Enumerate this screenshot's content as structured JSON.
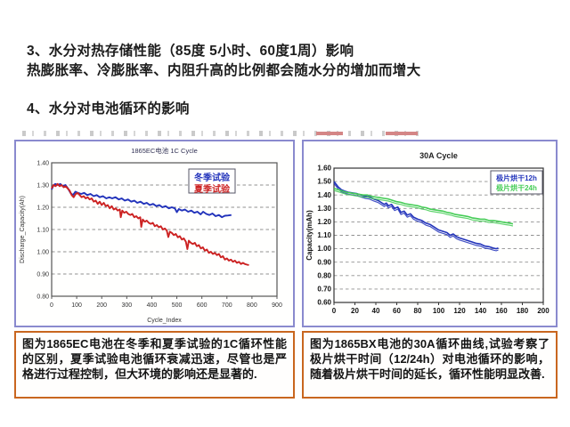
{
  "slide": {
    "heading_3": "3、水分对热存储性能（85度 5小时、60度1周）影响",
    "heading_3_sub": "热膨胀率、冷膨胀率、内阻升高的比例都会随水分的增加而增大",
    "heading_4": "4、水分对电池循环的影响"
  },
  "captions": {
    "left": "图为1865EC电池在冬季和夏季试验的1C循环性能的区别，夏季试验电池循环衰减迅速，尽管也是严格进行过程控制，但大环境的影响还是显著的.",
    "right": "图为1865BX电池的30A循环曲线,试验考察了极片烘干时间（12/24h）对电池循环的影响，随着极片烘干时间的延长，循环性能明显改善."
  },
  "colors": {
    "panel_border": "#8a8ace",
    "caption_border": "#c9661f",
    "winter_blue": "#2233bb",
    "summer_red": "#cc2222",
    "dry12_blue": "#2233bb",
    "dry24_green": "#44cc55",
    "grid_gray": "#909090"
  },
  "chart_data": [
    {
      "type": "line",
      "title": "1865EC电池 1C Cycle",
      "xlabel": "Cycle_Index",
      "ylabel": "Discharge_Capacity(Ah)",
      "xlim": [
        0,
        900
      ],
      "ylim": [
        0.8,
        1.4
      ],
      "xticks": [
        0,
        100,
        200,
        300,
        400,
        500,
        600,
        700,
        800,
        900
      ],
      "yticks": [
        0.8,
        0.9,
        1.0,
        1.1,
        1.2,
        1.3,
        1.4
      ],
      "grid": "horizontal-dashed",
      "legend_position": "top-right-inside",
      "series": [
        {
          "name": "冬季试验",
          "color": "#2233bb",
          "points": [
            [
              0,
              1.28
            ],
            [
              8,
              1.3
            ],
            [
              15,
              1.305
            ],
            [
              25,
              1.3
            ],
            [
              35,
              1.305
            ],
            [
              45,
              1.295
            ],
            [
              55,
              1.3
            ],
            [
              65,
              1.285
            ],
            [
              75,
              1.265
            ],
            [
              85,
              1.255
            ],
            [
              95,
              1.27
            ],
            [
              105,
              1.265
            ],
            [
              118,
              1.26
            ],
            [
              130,
              1.265
            ],
            [
              142,
              1.255
            ],
            [
              155,
              1.26
            ],
            [
              168,
              1.25
            ],
            [
              180,
              1.255
            ],
            [
              192,
              1.245
            ],
            [
              205,
              1.25
            ],
            [
              218,
              1.24
            ],
            [
              230,
              1.245
            ],
            [
              242,
              1.24
            ],
            [
              255,
              1.245
            ],
            [
              268,
              1.235
            ],
            [
              280,
              1.24
            ],
            [
              292,
              1.23
            ],
            [
              305,
              1.235
            ],
            [
              318,
              1.225
            ],
            [
              330,
              1.23
            ],
            [
              342,
              1.22
            ],
            [
              355,
              1.225
            ],
            [
              368,
              1.215
            ],
            [
              380,
              1.22
            ],
            [
              392,
              1.21
            ],
            [
              405,
              1.215
            ],
            [
              418,
              1.205
            ],
            [
              430,
              1.21
            ],
            [
              442,
              1.2
            ],
            [
              455,
              1.205
            ],
            [
              468,
              1.195
            ],
            [
              480,
              1.2
            ],
            [
              492,
              1.195
            ],
            [
              500,
              1.178
            ],
            [
              508,
              1.192
            ],
            [
              520,
              1.185
            ],
            [
              532,
              1.19
            ],
            [
              545,
              1.18
            ],
            [
              558,
              1.185
            ],
            [
              570,
              1.175
            ],
            [
              582,
              1.18
            ],
            [
              595,
              1.168
            ],
            [
              605,
              1.18
            ],
            [
              618,
              1.17
            ],
            [
              630,
              1.165
            ],
            [
              642,
              1.172
            ],
            [
              655,
              1.16
            ],
            [
              668,
              1.165
            ],
            [
              680,
              1.155
            ],
            [
              692,
              1.162
            ],
            [
              705,
              1.163
            ],
            [
              718,
              1.165
            ]
          ]
        },
        {
          "name": "夏季试验",
          "color": "#cc2222",
          "points": [
            [
              0,
              1.285
            ],
            [
              8,
              1.3
            ],
            [
              16,
              1.295
            ],
            [
              24,
              1.305
            ],
            [
              32,
              1.295
            ],
            [
              40,
              1.3
            ],
            [
              48,
              1.29
            ],
            [
              56,
              1.295
            ],
            [
              64,
              1.285
            ],
            [
              72,
              1.275
            ],
            [
              80,
              1.255
            ],
            [
              88,
              1.245
            ],
            [
              96,
              1.26
            ],
            [
              104,
              1.265
            ],
            [
              112,
              1.255
            ],
            [
              120,
              1.245
            ],
            [
              128,
              1.25
            ],
            [
              136,
              1.24
            ],
            [
              144,
              1.245
            ],
            [
              152,
              1.235
            ],
            [
              160,
              1.24
            ],
            [
              168,
              1.225
            ],
            [
              176,
              1.23
            ],
            [
              184,
              1.215
            ],
            [
              192,
              1.225
            ],
            [
              200,
              1.21
            ],
            [
              208,
              1.22
            ],
            [
              216,
              1.205
            ],
            [
              224,
              1.21
            ],
            [
              232,
              1.195
            ],
            [
              240,
              1.205
            ],
            [
              248,
              1.19
            ],
            [
              256,
              1.195
            ],
            [
              264,
              1.185
            ],
            [
              272,
              1.19
            ],
            [
              276,
              1.155
            ],
            [
              282,
              1.185
            ],
            [
              290,
              1.175
            ],
            [
              298,
              1.18
            ],
            [
              306,
              1.17
            ],
            [
              314,
              1.165
            ],
            [
              322,
              1.17
            ],
            [
              330,
              1.155
            ],
            [
              338,
              1.16
            ],
            [
              346,
              1.15
            ],
            [
              354,
              1.155
            ],
            [
              358,
              1.112
            ],
            [
              364,
              1.145
            ],
            [
              372,
              1.135
            ],
            [
              380,
              1.14
            ],
            [
              388,
              1.13
            ],
            [
              396,
              1.125
            ],
            [
              404,
              1.13
            ],
            [
              412,
              1.115
            ],
            [
              420,
              1.12
            ],
            [
              428,
              1.11
            ],
            [
              436,
              1.115
            ],
            [
              444,
              1.1
            ],
            [
              452,
              1.105
            ],
            [
              460,
              1.095
            ],
            [
              466,
              1.066
            ],
            [
              472,
              1.09
            ],
            [
              480,
              1.085
            ],
            [
              488,
              1.075
            ],
            [
              496,
              1.08
            ],
            [
              504,
              1.065
            ],
            [
              512,
              1.07
            ],
            [
              520,
              1.055
            ],
            [
              528,
              1.06
            ],
            [
              536,
              1.045
            ],
            [
              542,
              1.012
            ],
            [
              548,
              1.05
            ],
            [
              556,
              1.04
            ],
            [
              564,
              1.035
            ],
            [
              572,
              1.04
            ],
            [
              580,
              1.025
            ],
            [
              588,
              1.03
            ],
            [
              596,
              1.015
            ],
            [
              604,
              1.02
            ],
            [
              612,
              1.005
            ],
            [
              620,
              1.01
            ],
            [
              628,
              0.995
            ],
            [
              636,
              1.0
            ],
            [
              644,
              0.99
            ],
            [
              652,
              0.995
            ],
            [
              660,
              0.985
            ],
            [
              668,
              0.99
            ],
            [
              676,
              0.975
            ],
            [
              684,
              0.98
            ],
            [
              692,
              0.965
            ],
            [
              700,
              0.97
            ],
            [
              708,
              0.96
            ],
            [
              716,
              0.965
            ],
            [
              724,
              0.955
            ],
            [
              732,
              0.96
            ],
            [
              740,
              0.95
            ],
            [
              748,
              0.955
            ],
            [
              756,
              0.945
            ],
            [
              764,
              0.95
            ],
            [
              772,
              0.945
            ],
            [
              780,
              0.942
            ],
            [
              788,
              0.94
            ]
          ]
        }
      ]
    },
    {
      "type": "line",
      "title": "30A Cycle",
      "xlabel": "",
      "ylabel": "Capacity(mAh)",
      "xlim": [
        0,
        200
      ],
      "ylim": [
        0.6,
        1.6
      ],
      "xticks": [
        0,
        20,
        40,
        60,
        80,
        100,
        120,
        140,
        160,
        180,
        200
      ],
      "yticks": [
        0.6,
        0.7,
        0.8,
        0.9,
        1.0,
        1.1,
        1.2,
        1.3,
        1.4,
        1.5,
        1.6
      ],
      "grid": "horizontal-dashed",
      "legend_position": "top-right-inside",
      "series": [
        {
          "name": "极片烘干12h",
          "color": "#2233bb",
          "points": [
            [
              0,
              1.5
            ],
            [
              2,
              1.48
            ],
            [
              4,
              1.46
            ],
            [
              7,
              1.44
            ],
            [
              10,
              1.43
            ],
            [
              14,
              1.42
            ],
            [
              18,
              1.415
            ],
            [
              22,
              1.41
            ],
            [
              26,
              1.4
            ],
            [
              30,
              1.39
            ],
            [
              34,
              1.385
            ],
            [
              38,
              1.37
            ],
            [
              42,
              1.36
            ],
            [
              45,
              1.345
            ],
            [
              48,
              1.33
            ],
            [
              50,
              1.34
            ],
            [
              52,
              1.32
            ],
            [
              55,
              1.33
            ],
            [
              58,
              1.3
            ],
            [
              61,
              1.31
            ],
            [
              64,
              1.27
            ],
            [
              67,
              1.28
            ],
            [
              70,
              1.25
            ],
            [
              73,
              1.26
            ],
            [
              76,
              1.235
            ],
            [
              80,
              1.22
            ],
            [
              84,
              1.21
            ],
            [
              88,
              1.19
            ],
            [
              92,
              1.18
            ],
            [
              96,
              1.16
            ],
            [
              100,
              1.14
            ],
            [
              104,
              1.13
            ],
            [
              108,
              1.12
            ],
            [
              111,
              1.1
            ],
            [
              114,
              1.11
            ],
            [
              117,
              1.09
            ],
            [
              120,
              1.08
            ],
            [
              124,
              1.07
            ],
            [
              128,
              1.06
            ],
            [
              132,
              1.05
            ],
            [
              136,
              1.04
            ],
            [
              140,
              1.035
            ],
            [
              144,
              1.02
            ],
            [
              148,
              1.015
            ],
            [
              152,
              1.005
            ],
            [
              155,
              1.0
            ],
            [
              157,
              1.005
            ]
          ]
        },
        {
          "name": "极片烘干24h",
          "color": "#44cc55",
          "points": [
            [
              0,
              1.45
            ],
            [
              4,
              1.44
            ],
            [
              8,
              1.43
            ],
            [
              12,
              1.42
            ],
            [
              16,
              1.415
            ],
            [
              20,
              1.41
            ],
            [
              24,
              1.405
            ],
            [
              28,
              1.4
            ],
            [
              32,
              1.4
            ],
            [
              36,
              1.39
            ],
            [
              40,
              1.385
            ],
            [
              44,
              1.38
            ],
            [
              48,
              1.375
            ],
            [
              52,
              1.37
            ],
            [
              56,
              1.36
            ],
            [
              60,
              1.35
            ],
            [
              64,
              1.345
            ],
            [
              68,
              1.335
            ],
            [
              72,
              1.33
            ],
            [
              76,
              1.325
            ],
            [
              80,
              1.32
            ],
            [
              84,
              1.31
            ],
            [
              88,
              1.305
            ],
            [
              92,
              1.295
            ],
            [
              96,
              1.29
            ],
            [
              100,
              1.285
            ],
            [
              104,
              1.28
            ],
            [
              108,
              1.27
            ],
            [
              112,
              1.265
            ],
            [
              116,
              1.255
            ],
            [
              120,
              1.25
            ],
            [
              124,
              1.245
            ],
            [
              128,
              1.24
            ],
            [
              132,
              1.23
            ],
            [
              136,
              1.225
            ],
            [
              140,
              1.22
            ],
            [
              144,
              1.22
            ],
            [
              148,
              1.21
            ],
            [
              152,
              1.21
            ],
            [
              156,
              1.205
            ],
            [
              160,
              1.2
            ],
            [
              164,
              1.195
            ],
            [
              168,
              1.19
            ],
            [
              171,
              1.185
            ]
          ]
        }
      ]
    }
  ]
}
